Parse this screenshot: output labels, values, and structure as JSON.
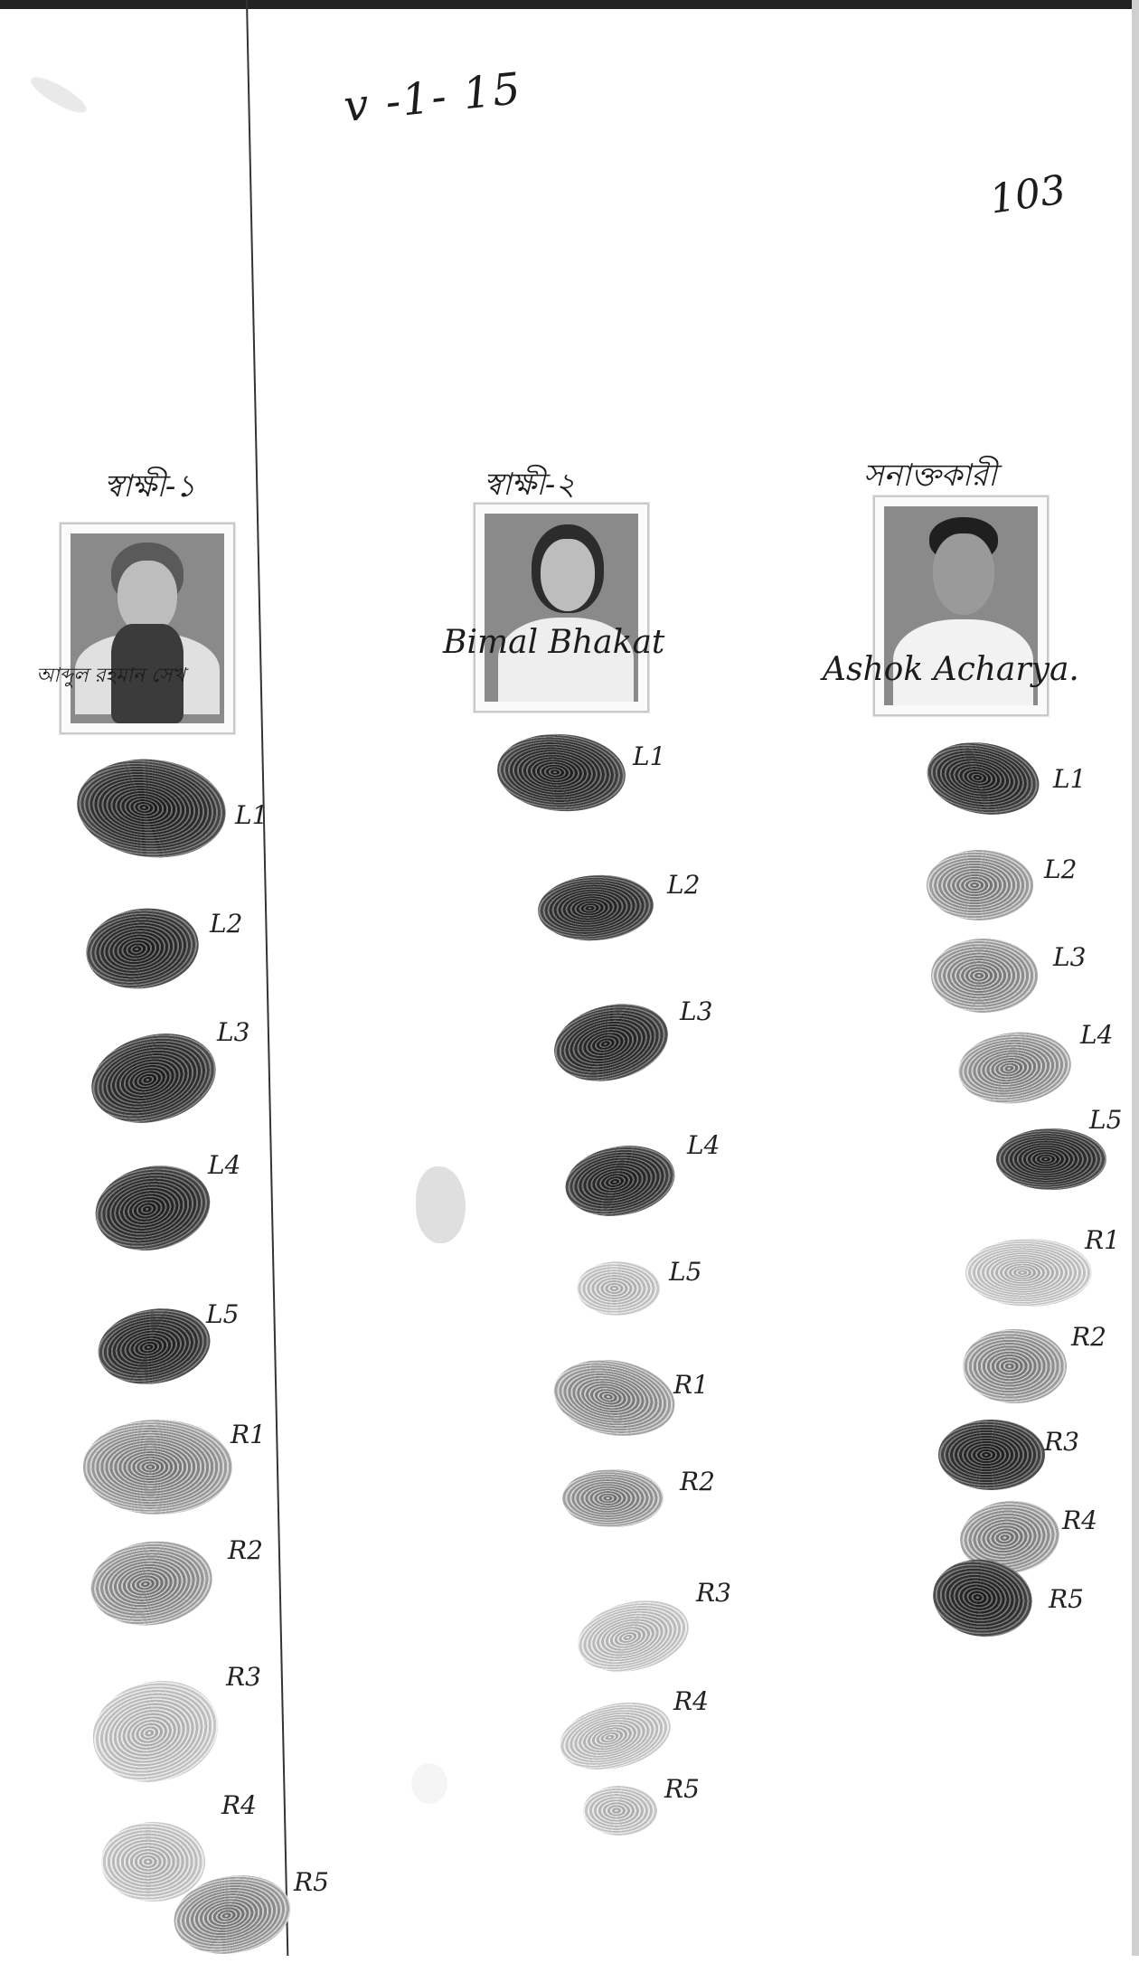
{
  "header": {
    "date": "v -1- 15",
    "page_number": "103"
  },
  "persons": [
    {
      "caption": "স্বাক্ষী-১",
      "signature": "আব্দুল রহমান সেখ",
      "prints": [
        "L1",
        "L2",
        "L3",
        "L4",
        "L5",
        "R1",
        "R2",
        "R3",
        "R4",
        "R5"
      ]
    },
    {
      "caption": "স্বাক্ষী-২",
      "signature": "Bimal Bhakat",
      "prints": [
        "L1",
        "L2",
        "L3",
        "L4",
        "L5",
        "R1",
        "R2",
        "R3",
        "R4",
        "R5"
      ]
    },
    {
      "caption": "সনাক্তকারী",
      "signature": "Ashok Acharya.",
      "prints": [
        "L1",
        "L2",
        "L3",
        "L4",
        "L5",
        "R1",
        "R2",
        "R3",
        "R4",
        "R5"
      ]
    }
  ]
}
